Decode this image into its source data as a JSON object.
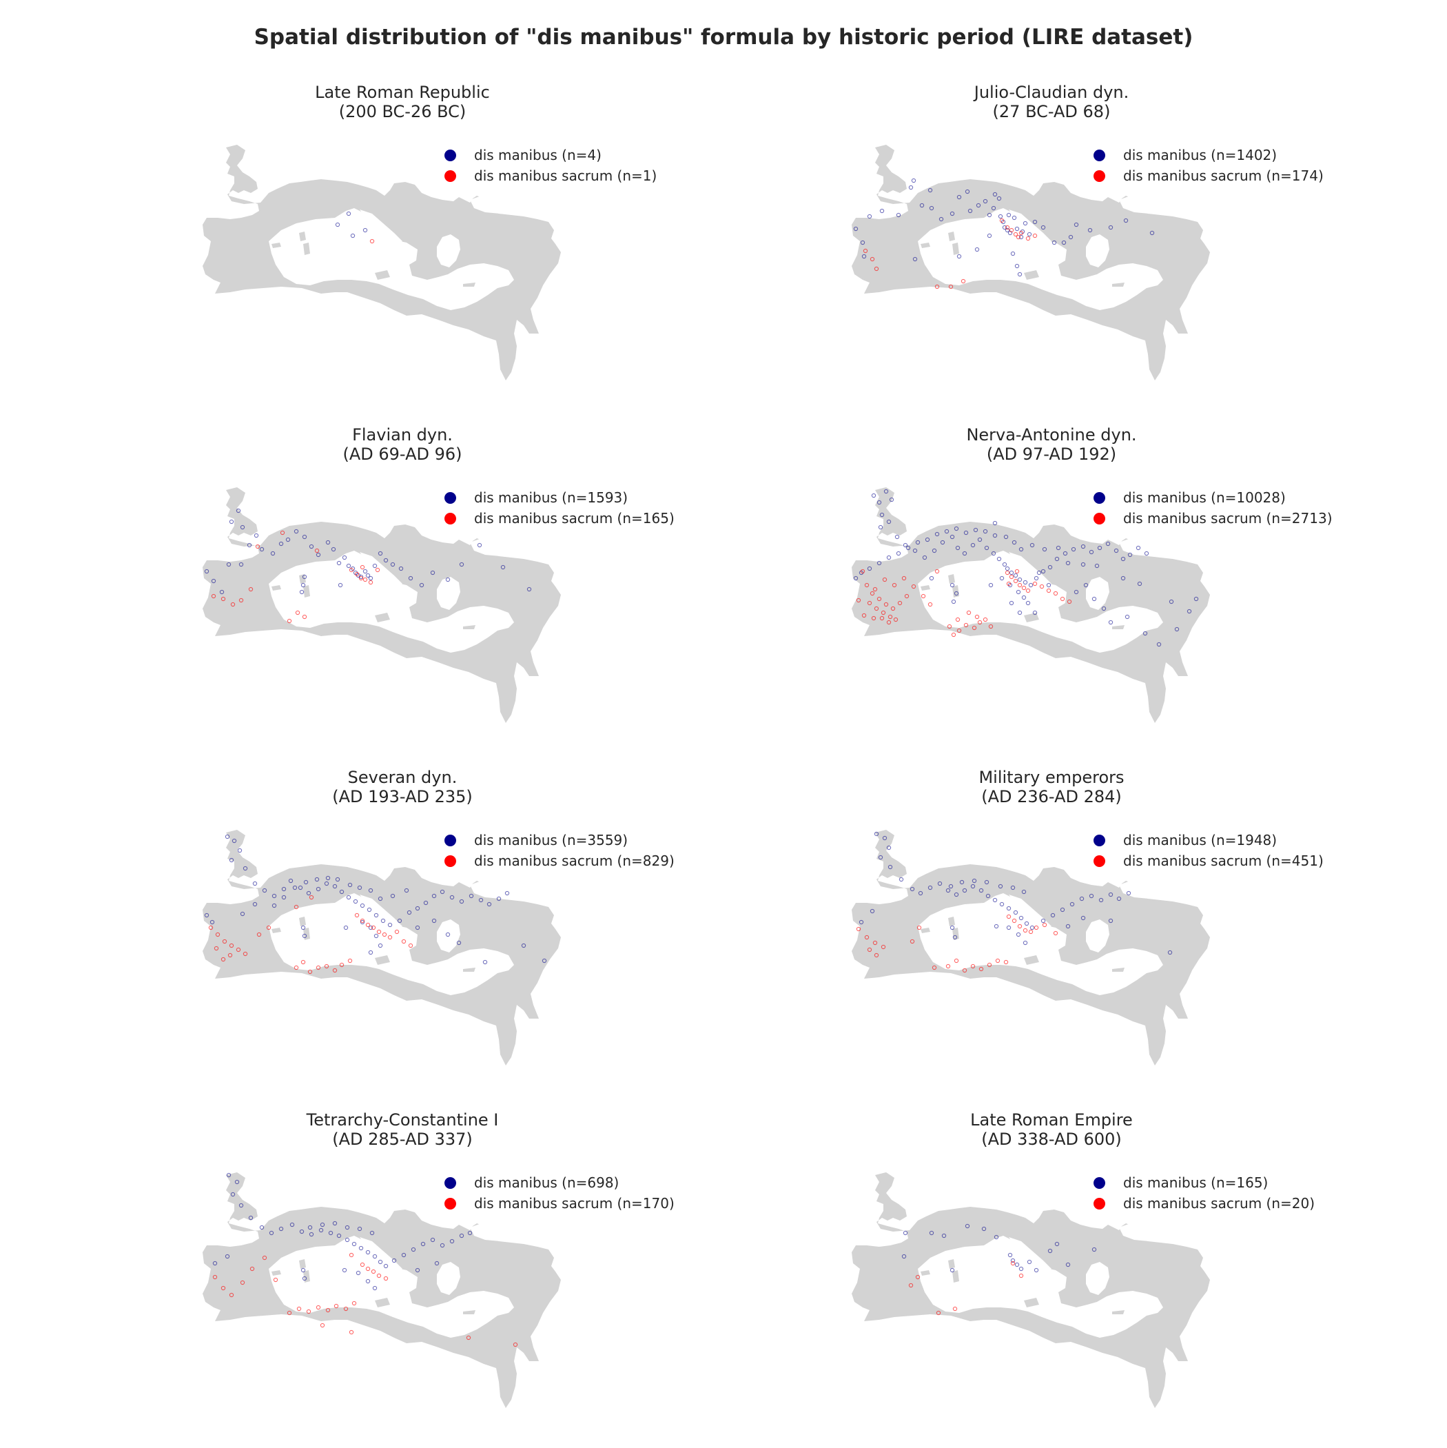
{
  "title": "Spatial distribution of \"dis manibus\" formula by historic period (LIRE dataset)",
  "colors": {
    "land": "#d3d3d3",
    "dis_manibus": "#00008b",
    "dis_manibus_sacrum": "#ff0000"
  },
  "panels": [
    {
      "title": "Late Roman Republic",
      "subtitle": "(200 BC-26 BC)",
      "legend": [
        {
          "label": "dis manibus (n=4)",
          "count": 4
        },
        {
          "label": "dis manibus sacrum (n=1)",
          "count": 1
        }
      ]
    },
    {
      "title": "Julio-Claudian dyn.",
      "subtitle": "(27 BC-AD 68)",
      "legend": [
        {
          "label": "dis manibus (n=1402)",
          "count": 1402
        },
        {
          "label": "dis manibus sacrum (n=174)",
          "count": 174
        }
      ]
    },
    {
      "title": "Flavian dyn.",
      "subtitle": "(AD 69-AD 96)",
      "legend": [
        {
          "label": "dis manibus (n=1593)",
          "count": 1593
        },
        {
          "label": "dis manibus sacrum (n=165)",
          "count": 165
        }
      ]
    },
    {
      "title": "Nerva-Antonine dyn.",
      "subtitle": "(AD 97-AD 192)",
      "legend": [
        {
          "label": "dis manibus (n=10028)",
          "count": 10028
        },
        {
          "label": "dis manibus sacrum (n=2713)",
          "count": 2713
        }
      ]
    },
    {
      "title": "Severan dyn.",
      "subtitle": "(AD 193-AD 235)",
      "legend": [
        {
          "label": "dis manibus (n=3559)",
          "count": 3559
        },
        {
          "label": "dis manibus sacrum (n=829)",
          "count": 829
        }
      ]
    },
    {
      "title": "Military emperors",
      "subtitle": "(AD 236-AD 284)",
      "legend": [
        {
          "label": "dis manibus (n=1948)",
          "count": 1948
        },
        {
          "label": "dis manibus sacrum (n=451)",
          "count": 451
        }
      ]
    },
    {
      "title": "Tetrarchy-Constantine I",
      "subtitle": "(AD 285-AD 337)",
      "legend": [
        {
          "label": "dis manibus (n=698)",
          "count": 698
        },
        {
          "label": "dis manibus sacrum (n=170)",
          "count": 170
        }
      ]
    },
    {
      "title": "Late Roman Empire",
      "subtitle": "(AD 338-AD 600)",
      "legend": [
        {
          "label": "dis manibus (n=165)",
          "count": 165
        },
        {
          "label": "dis manibus sacrum (n=20)",
          "count": 20
        }
      ]
    }
  ]
}
